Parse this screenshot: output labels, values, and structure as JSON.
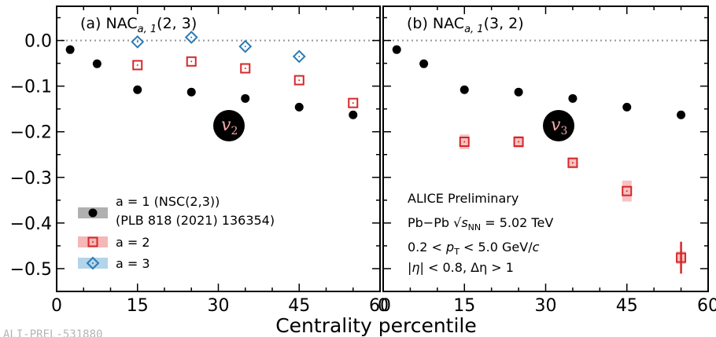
{
  "chart_data": {
    "type": "scatter",
    "xlabel": "Centrality percentile",
    "ylabel": "",
    "ylim": [
      -0.55,
      0.075
    ],
    "xlim": [
      0,
      60
    ],
    "x_ticks": [
      0,
      15,
      30,
      45,
      60
    ],
    "y_ticks": [
      0.0,
      -0.1,
      -0.2,
      -0.3,
      -0.4,
      -0.5
    ],
    "y_tick_labels": [
      "0.0",
      "−0.1",
      "−0.2",
      "−0.3",
      "−0.4",
      "−0.5"
    ],
    "x_tick_labels": [
      "0",
      "15",
      "30",
      "45",
      "60"
    ],
    "reference_line": 0.0,
    "watermark": "ALI-PREL-531880",
    "panels": [
      {
        "title_prefix": "(a) NAC",
        "title_sub": "a, 1",
        "title_suffix": "(2, 3)",
        "badge": "v",
        "badge_sub": "2",
        "series": [
          {
            "name": "a = 1 (NSC(2,3))",
            "marker": "circle",
            "color": "#000000",
            "x": [
              2.5,
              7.5,
              15,
              25,
              35,
              45,
              55
            ],
            "y": [
              -0.02,
              -0.051,
              -0.108,
              -0.113,
              -0.127,
              -0.146,
              -0.163
            ]
          },
          {
            "name": "a = 2",
            "marker": "square",
            "color": "#d62728",
            "x": [
              15,
              25,
              35,
              45,
              55
            ],
            "y": [
              -0.054,
              -0.046,
              -0.061,
              -0.087,
              -0.137
            ]
          },
          {
            "name": "a = 3",
            "marker": "diamond",
            "color": "#2c7bb6",
            "x": [
              15,
              25,
              35,
              45
            ],
            "y": [
              -0.003,
              0.007,
              -0.013,
              -0.035
            ]
          }
        ],
        "legend": {
          "placement": "lower-left",
          "entries": [
            {
              "label_lines": [
                "a = 1 (NSC(2,3))",
                "(PLB 818 (2021) 136354)"
              ],
              "marker": "circle",
              "color": "#000000",
              "band": "#b0b0b0"
            },
            {
              "label_lines": [
                "a = 2"
              ],
              "marker": "square",
              "color": "#d62728",
              "band": "#f5b7b7"
            },
            {
              "label_lines": [
                "a = 3"
              ],
              "marker": "diamond",
              "color": "#2c7bb6",
              "band": "#b3d4ea"
            }
          ]
        }
      },
      {
        "title_prefix": "(b) NAC",
        "title_sub": "a, 1",
        "title_suffix": "(3, 2)",
        "badge": "v",
        "badge_sub": "3",
        "series": [
          {
            "name": "a = 1 (NSC(2,3))",
            "marker": "circle",
            "color": "#000000",
            "x": [
              2.5,
              7.5,
              15,
              25,
              35,
              45,
              55
            ],
            "y": [
              -0.02,
              -0.051,
              -0.108,
              -0.113,
              -0.127,
              -0.146,
              -0.163
            ]
          },
          {
            "name": "a = 2",
            "marker": "square",
            "color": "#d62728",
            "x": [
              15,
              25,
              35,
              45,
              55
            ],
            "y": [
              -0.222,
              -0.222,
              -0.268,
              -0.33,
              -0.476
            ],
            "yerr": [
              0.003,
              0.003,
              0.005,
              0.008,
              0.035
            ],
            "sys": [
              0.016,
              0.013,
              0.012,
              0.023,
              0.014
            ]
          }
        ],
        "info": {
          "line1": "ALICE Preliminary",
          "line2_prefix": "Pb−Pb ",
          "line2_sqrt": "s",
          "line2_sub": "NN",
          "line2_suffix": " = 5.02 TeV",
          "line3_prefix": "0.2 < ",
          "line3_var": "p",
          "line3_sub": "T",
          "line3_suffix": " < 5.0 GeV/",
          "line3_unit": "c",
          "line4_prefix": "|",
          "line4_eta": "η",
          "line4_suffix": "| < 0.8, Δη > 1"
        }
      }
    ]
  }
}
